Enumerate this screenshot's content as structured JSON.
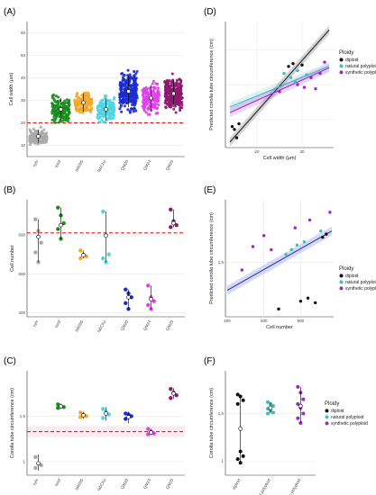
{
  "figure": {
    "panels": [
      "(A)",
      "(B)",
      "(C)",
      "(D)",
      "(E)",
      "(F)"
    ]
  },
  "colors": {
    "sylv": "#a8a8a8",
    "tomf": "#1a8c1a",
    "tab095": "#f5a623",
    "tabChu": "#4fd4e0",
    "QM20": "#1b2bd6",
    "QM24": "#e040e8",
    "QM25": "#8b1a6e",
    "diploid": "#111111",
    "natural": "#3bbdbd",
    "synthetic": "#9a27c9",
    "refline": "#e02020",
    "fitD": "#111111",
    "fitE": "#1a2bb0"
  },
  "chart_data": [
    {
      "id": "A",
      "type": "scatter",
      "ylabel": "Cell width (µm)",
      "categories": [
        "sylv",
        "tomf",
        "tab095",
        "tabChu",
        "QM20",
        "QM24",
        "QM25"
      ],
      "ylim": [
        5,
        65
      ],
      "yticks": [
        10,
        20,
        30,
        40,
        50,
        60
      ],
      "refline": 20,
      "series": [
        {
          "category": "sylv",
          "mean": 14,
          "sd": 3,
          "min": 8,
          "max": 22
        },
        {
          "category": "tomf",
          "mean": 26,
          "sd": 5,
          "min": 15,
          "max": 44
        },
        {
          "category": "tab095",
          "mean": 29,
          "sd": 4,
          "min": 20,
          "max": 42
        },
        {
          "category": "tabChu",
          "mean": 26,
          "sd": 5,
          "min": 16,
          "max": 38
        },
        {
          "category": "QM20",
          "mean": 34,
          "sd": 7,
          "min": 18,
          "max": 55
        },
        {
          "category": "QM24",
          "mean": 31,
          "sd": 6,
          "min": 18,
          "max": 47
        },
        {
          "category": "QM25",
          "mean": 33,
          "sd": 6,
          "min": 20,
          "max": 48
        }
      ]
    },
    {
      "id": "B",
      "type": "scatter",
      "ylabel": "Cell number",
      "categories": [
        "sylv",
        "tomf",
        "tab095",
        "tabChu",
        "QM20",
        "QM24",
        "QM25"
      ],
      "ylim": [
        390,
        690
      ],
      "yticks": [
        400,
        500,
        600
      ],
      "refline": 605,
      "points": {
        "sylv": [
          640,
          610,
          580,
          555,
          530
        ],
        "tomf": [
          670,
          650,
          630,
          615,
          590
        ],
        "tab095": [
          560,
          550,
          545,
          540
        ],
        "tabChu": [
          660,
          600,
          550,
          540,
          530
        ],
        "QM20": [
          460,
          450,
          440,
          425,
          410
        ],
        "QM24": [
          470,
          440,
          430,
          420,
          410
        ],
        "QM25": [
          665,
          635,
          625,
          620
        ]
      },
      "summary": {
        "sylv": {
          "mean": 595,
          "lo": 530,
          "hi": 640
        },
        "tomf": {
          "mean": 625,
          "lo": 590,
          "hi": 670
        },
        "tab095": {
          "mean": 548,
          "lo": 540,
          "hi": 560
        },
        "tabChu": {
          "mean": 598,
          "lo": 530,
          "hi": 660
        },
        "QM20": {
          "mean": 440,
          "lo": 410,
          "hi": 460
        },
        "QM24": {
          "mean": 435,
          "lo": 410,
          "hi": 470
        },
        "QM25": {
          "mean": 630,
          "lo": 620,
          "hi": 665
        }
      }
    },
    {
      "id": "C",
      "type": "scatter",
      "ylabel": "Corolla tube circumference (cm)",
      "categories": [
        "sylv",
        "tomf",
        "tab095",
        "tabChu",
        "QM20",
        "QM24",
        "QM25"
      ],
      "ylim": [
        0.85,
        2.0
      ],
      "yticks": [
        1.0,
        1.5
      ],
      "refline": 1.33,
      "points": {
        "sylv": [
          1.05,
          0.98,
          0.96,
          0.93
        ],
        "tomf": [
          1.63,
          1.61,
          1.6,
          1.59
        ],
        "tab095": [
          1.54,
          1.52,
          1.5,
          1.49
        ],
        "tabChu": [
          1.58,
          1.55,
          1.52,
          1.48
        ],
        "QM20": [
          1.53,
          1.52,
          1.5,
          1.47
        ],
        "QM24": [
          1.36,
          1.33,
          1.31,
          1.3
        ],
        "QM25": [
          1.8,
          1.76,
          1.73,
          1.7
        ]
      },
      "summary": {
        "sylv": {
          "mean": 0.98,
          "lo": 0.9,
          "hi": 1.08
        },
        "tomf": {
          "mean": 1.61,
          "lo": 1.58,
          "hi": 1.64
        },
        "tab095": {
          "mean": 1.51,
          "lo": 1.47,
          "hi": 1.55
        },
        "tabChu": {
          "mean": 1.53,
          "lo": 1.45,
          "hi": 1.6
        },
        "QM20": {
          "mean": 1.49,
          "lo": 1.42,
          "hi": 1.55
        },
        "QM24": {
          "mean": 1.32,
          "lo": 1.29,
          "hi": 1.36
        },
        "QM25": {
          "mean": 1.75,
          "lo": 1.69,
          "hi": 1.81
        }
      }
    },
    {
      "id": "D",
      "type": "scatter",
      "xlabel": "Cell width (µm)",
      "ylabel": "Predicted corolla tube circumference (cm)",
      "xlim": [
        13,
        37
      ],
      "ylim": [
        1.05,
        1.95
      ],
      "xticks": [
        20,
        30
      ],
      "yticks": [
        1.25,
        1.5,
        1.75
      ],
      "ytick_labels": [
        "",
        "",
        ""
      ],
      "legend_title": "Ploidy",
      "legend": [
        "diploid",
        "natural polyploid",
        "synthetic polyploid"
      ],
      "legend_position": "right",
      "fits": [
        {
          "group": "diploid",
          "x": [
            14,
            36
          ],
          "y": [
            1.09,
            1.89
          ]
        },
        {
          "group": "natural polyploid",
          "x": [
            14,
            36
          ],
          "y": [
            1.34,
            1.63
          ]
        },
        {
          "group": "synthetic polyploid",
          "x": [
            14,
            36
          ],
          "y": [
            1.3,
            1.62
          ]
        }
      ],
      "points": [
        {
          "g": "diploid",
          "x": 14.5,
          "y": 1.2
        },
        {
          "g": "diploid",
          "x": 15,
          "y": 1.18
        },
        {
          "g": "diploid",
          "x": 16,
          "y": 1.22
        },
        {
          "g": "diploid",
          "x": 15.5,
          "y": 1.12
        },
        {
          "g": "diploid",
          "x": 27,
          "y": 1.63
        },
        {
          "g": "diploid",
          "x": 28,
          "y": 1.65
        },
        {
          "g": "diploid",
          "x": 30,
          "y": 1.64
        },
        {
          "g": "natural polyploid",
          "x": 26,
          "y": 1.58
        },
        {
          "g": "natural polyploid",
          "x": 27.5,
          "y": 1.55
        },
        {
          "g": "natural polyploid",
          "x": 28.5,
          "y": 1.52
        },
        {
          "g": "natural polyploid",
          "x": 29,
          "y": 1.6
        },
        {
          "g": "natural polyploid",
          "x": 31,
          "y": 1.57
        },
        {
          "g": "synthetic polyploid",
          "x": 25,
          "y": 1.45
        },
        {
          "g": "synthetic polyploid",
          "x": 29,
          "y": 1.5
        },
        {
          "g": "synthetic polyploid",
          "x": 30.5,
          "y": 1.48
        },
        {
          "g": "synthetic polyploid",
          "x": 32,
          "y": 1.55
        },
        {
          "g": "synthetic polyploid",
          "x": 33,
          "y": 1.47
        },
        {
          "g": "synthetic polyploid",
          "x": 34,
          "y": 1.58
        },
        {
          "g": "synthetic polyploid",
          "x": 35,
          "y": 1.66
        }
      ]
    },
    {
      "id": "E",
      "type": "scatter",
      "xlabel": "Cell number",
      "ylabel": "Predicted corolla tube circumference (cm)",
      "xlim": [
        395,
        690
      ],
      "ylim": [
        1.15,
        1.9
      ],
      "xticks": [
        400,
        500,
        600
      ],
      "yticks": [
        1.5
      ],
      "legend_title": "Ploidy",
      "legend": [
        "diploid",
        "natural polyploid",
        "synthetic polyploid"
      ],
      "legend_position": "right",
      "fit": {
        "x": [
          400,
          685
        ],
        "y": [
          1.32,
          1.7
        ]
      },
      "points": [
        {
          "g": "diploid",
          "x": 540,
          "y": 1.2
        },
        {
          "g": "diploid",
          "x": 600,
          "y": 1.25
        },
        {
          "g": "diploid",
          "x": 620,
          "y": 1.27
        },
        {
          "g": "diploid",
          "x": 640,
          "y": 1.24
        },
        {
          "g": "diploid",
          "x": 670,
          "y": 1.68
        },
        {
          "g": "diploid",
          "x": 660,
          "y": 1.66
        },
        {
          "g": "natural polyploid",
          "x": 560,
          "y": 1.55
        },
        {
          "g": "natural polyploid",
          "x": 575,
          "y": 1.58
        },
        {
          "g": "natural polyploid",
          "x": 590,
          "y": 1.61
        },
        {
          "g": "natural polyploid",
          "x": 610,
          "y": 1.63
        },
        {
          "g": "natural polyploid",
          "x": 655,
          "y": 1.7
        },
        {
          "g": "synthetic polyploid",
          "x": 440,
          "y": 1.45
        },
        {
          "g": "synthetic polyploid",
          "x": 470,
          "y": 1.6
        },
        {
          "g": "synthetic polyploid",
          "x": 500,
          "y": 1.67
        },
        {
          "g": "synthetic polyploid",
          "x": 520,
          "y": 1.58
        },
        {
          "g": "synthetic polyploid",
          "x": 585,
          "y": 1.72
        },
        {
          "g": "synthetic polyploid",
          "x": 625,
          "y": 1.77
        },
        {
          "g": "synthetic polyploid",
          "x": 680,
          "y": 1.82
        }
      ]
    },
    {
      "id": "F",
      "type": "scatter",
      "ylabel": "Corolla tube circumference (cm)",
      "categories": [
        "diploid",
        "natural polyploid",
        "synthetic polyploid"
      ],
      "ylim": [
        0.85,
        1.95
      ],
      "yticks": [
        1.0,
        1.5
      ],
      "legend_title": "Ploidy",
      "legend": [
        "diploid",
        "natural polyploid",
        "synthetic polyploid"
      ],
      "legend_position": "right",
      "points": {
        "diploid": [
          1.7,
          1.68,
          1.64,
          1.6,
          1.1,
          1.05,
          1.02,
          0.98
        ],
        "natural polyploid": [
          1.62,
          1.6,
          1.58,
          1.55,
          1.53,
          1.51,
          1.5
        ],
        "synthetic polyploid": [
          1.78,
          1.72,
          1.65,
          1.6,
          1.56,
          1.5,
          1.45,
          1.4
        ]
      },
      "summary": {
        "diploid": {
          "mean": 1.34,
          "lo": 0.98,
          "hi": 1.7
        },
        "natural polyploid": {
          "mean": 1.56,
          "lo": 1.5,
          "hi": 1.62
        },
        "synthetic polyploid": {
          "mean": 1.58,
          "lo": 1.4,
          "hi": 1.78
        }
      }
    }
  ]
}
